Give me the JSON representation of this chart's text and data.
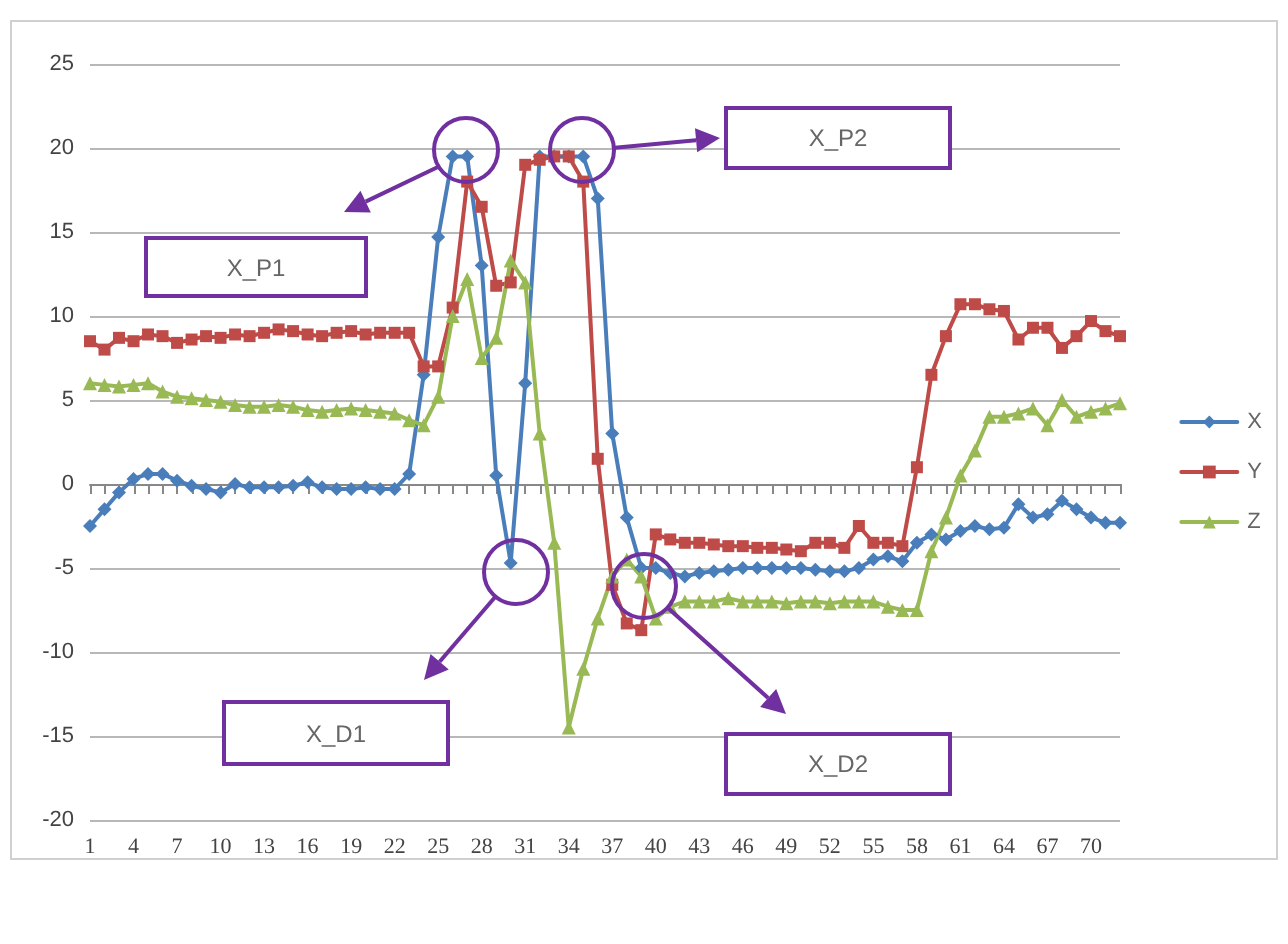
{
  "chart_data": {
    "type": "line",
    "categories": [
      "1",
      null,
      null,
      "4",
      null,
      null,
      "7",
      null,
      null,
      "10",
      null,
      null,
      "13",
      null,
      null,
      "16",
      null,
      null,
      "19",
      null,
      null,
      "22",
      null,
      null,
      "25",
      null,
      null,
      "28",
      null,
      null,
      "31",
      null,
      null,
      "34",
      null,
      null,
      "37",
      null,
      null,
      "40",
      null,
      null,
      "43",
      null,
      null,
      "46",
      null,
      null,
      "49",
      null,
      null,
      "52",
      null,
      null,
      "55",
      null,
      null,
      "58",
      null,
      null,
      "61",
      null,
      null,
      "64",
      null,
      null,
      "67",
      null,
      null,
      "70",
      null,
      null
    ],
    "series": [
      {
        "name": "X",
        "color": "#4a7ebb",
        "marker": "diamond",
        "values": [
          -2.5,
          -1.5,
          -0.5,
          0.3,
          0.6,
          0.6,
          0.2,
          -0.1,
          -0.3,
          -0.5,
          0,
          -0.2,
          -0.2,
          -0.2,
          -0.1,
          0.1,
          -0.2,
          -0.3,
          -0.3,
          -0.2,
          -0.3,
          -0.3,
          0.6,
          6.5,
          14.7,
          19.5,
          19.5,
          13,
          0.5,
          -4.7,
          6,
          19.5,
          19.5,
          19.5,
          19.5,
          17,
          3,
          -2,
          -5,
          -5,
          -5.3,
          -5.5,
          -5.3,
          -5.2,
          -5.1,
          -5,
          -5,
          -5,
          -5,
          -5,
          -5.1,
          -5.2,
          -5.2,
          -5,
          -4.5,
          -4.3,
          -4.6,
          -3.5,
          -3,
          -3.3,
          -2.8,
          -2.5,
          -2.7,
          -2.6,
          -1.2,
          -2,
          -1.8,
          -1,
          -1.5,
          -2,
          -2.3,
          -2.3
        ]
      },
      {
        "name": "Y",
        "color": "#be4b48",
        "marker": "square",
        "values": [
          8.5,
          8,
          8.7,
          8.5,
          8.9,
          8.8,
          8.4,
          8.6,
          8.8,
          8.7,
          8.9,
          8.8,
          9,
          9.2,
          9.1,
          8.9,
          8.8,
          9,
          9.1,
          8.9,
          9,
          9,
          9,
          7,
          7,
          10.5,
          18,
          16.5,
          11.8,
          12,
          19,
          19.3,
          19.5,
          19.5,
          18,
          1.5,
          -6,
          -8.3,
          -8.7,
          -3,
          -3.3,
          -3.5,
          -3.5,
          -3.6,
          -3.7,
          -3.7,
          -3.8,
          -3.8,
          -3.9,
          -4,
          -3.5,
          -3.5,
          -3.8,
          -2.5,
          -3.5,
          -3.5,
          -3.7,
          1,
          6.5,
          8.8,
          10.7,
          10.7,
          10.4,
          10.3,
          8.6,
          9.3,
          9.3,
          8.1,
          8.8,
          9.7,
          9.1,
          8.8
        ]
      },
      {
        "name": "Z",
        "color": "#98b954",
        "marker": "triangle",
        "values": [
          6,
          5.9,
          5.8,
          5.9,
          6,
          5.5,
          5.2,
          5.1,
          5,
          4.9,
          4.7,
          4.6,
          4.6,
          4.7,
          4.6,
          4.4,
          4.3,
          4.4,
          4.5,
          4.4,
          4.3,
          4.2,
          3.8,
          3.5,
          5.2,
          10,
          12.2,
          7.5,
          8.7,
          13.3,
          12,
          3,
          -3.5,
          -14.5,
          -11,
          -8,
          -5.5,
          -4.5,
          -5.5,
          -8,
          -7.3,
          -7,
          -7,
          -7,
          -6.8,
          -7,
          -7,
          -7,
          -7.1,
          -7,
          -7,
          -7.1,
          -7,
          -7,
          -7,
          -7.3,
          -7.5,
          -7.5,
          -4,
          -2,
          0.5,
          2,
          4,
          4,
          4.2,
          4.5,
          3.5,
          5,
          4,
          4.3,
          4.5,
          4.8
        ]
      }
    ],
    "ylim": [
      -20,
      25
    ],
    "yticks": [
      -20,
      -15,
      -10,
      -5,
      0,
      5,
      10,
      15,
      20,
      25
    ],
    "grid": "y",
    "legend": "right",
    "annotations": [
      "X_P1",
      "X_P2",
      "X_D1",
      "X_D2"
    ]
  }
}
